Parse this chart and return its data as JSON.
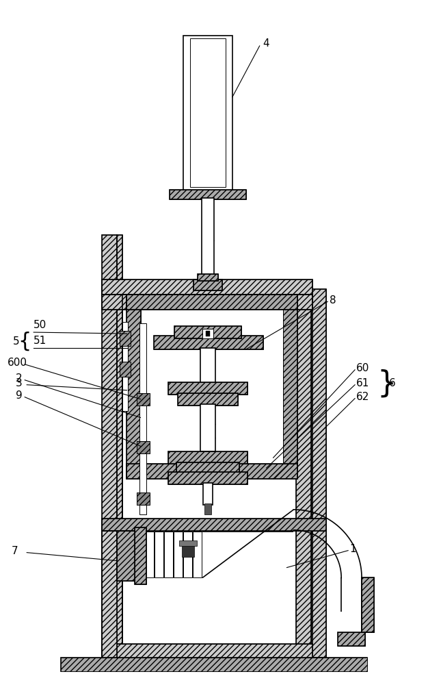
{
  "bg_color": "#ffffff",
  "line_color": "#000000",
  "fig_width": 6.26,
  "fig_height": 10.0
}
